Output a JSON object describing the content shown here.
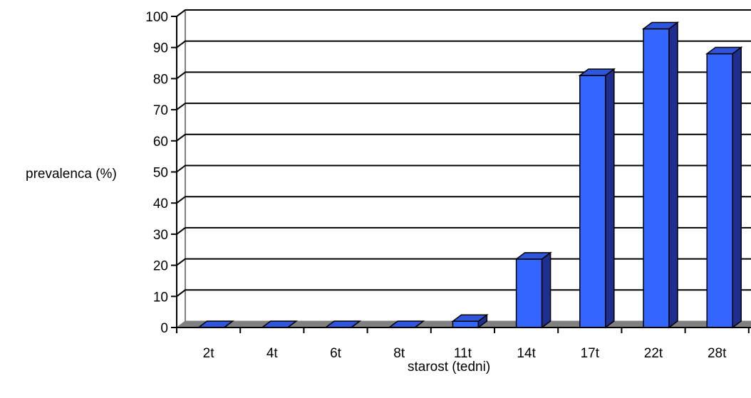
{
  "chart_data": {
    "type": "bar",
    "style": "3d-column",
    "title": "",
    "xlabel": "starost (tedni)",
    "ylabel": "prevalenca (%)",
    "categories": [
      "2t",
      "4t",
      "6t",
      "8t",
      "11t",
      "14t",
      "17t",
      "22t",
      "28t"
    ],
    "values": [
      0,
      0,
      0,
      0,
      2,
      22,
      81,
      96,
      88
    ],
    "ylim": [
      0,
      100
    ],
    "yticks": [
      0,
      10,
      20,
      30,
      40,
      50,
      60,
      70,
      80,
      90,
      100
    ],
    "grid": true,
    "legend": "none",
    "colors": {
      "bar_front": "#3366ff",
      "bar_top": "#2f55dd",
      "bar_side": "#1f2f8f",
      "bar_outline": "#000000",
      "floor": "#808080",
      "grid": "#000000",
      "wall_outline": "#808080"
    }
  }
}
